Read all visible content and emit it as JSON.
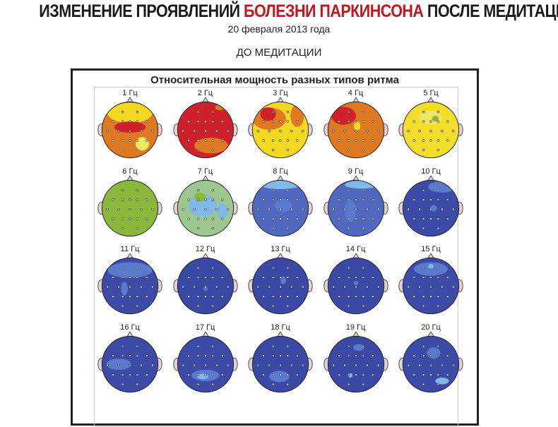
{
  "header": {
    "title_part1": "ИЗМЕНЕНИЕ ПРОЯВЛЕНИЙ ",
    "title_highlight": "БОЛЕЗНИ ПАРКИНСОНА",
    "title_part2": " ПОСЛЕ МЕДИТАЦИИ",
    "date": "20 февраля 2013 года",
    "phase": "ДО МЕДИТАЦИИ"
  },
  "colors": {
    "highlight": "#c4161c"
  },
  "panel": {
    "title": "Относительная мощность разных типов ритма",
    "maps": [
      {
        "label": "1 Гц",
        "base": "#e07a20",
        "dominant": "orange"
      },
      {
        "label": "2 Гц",
        "base": "#d0202a",
        "dominant": "red"
      },
      {
        "label": "3 Гц",
        "base": "#f5d820",
        "dominant": "yellow"
      },
      {
        "label": "4 Гц",
        "base": "#e07a20",
        "dominant": "orange"
      },
      {
        "label": "5 Гц",
        "base": "#f5de2a",
        "dominant": "yellow"
      },
      {
        "label": "6 Гц",
        "base": "#8ab83a",
        "dominant": "green"
      },
      {
        "label": "7 Гц",
        "base": "#9cc890",
        "dominant": "light-green"
      },
      {
        "label": "8 Гц",
        "base": "#5068c0",
        "dominant": "blue"
      },
      {
        "label": "9 Гц",
        "base": "#5068c0",
        "dominant": "blue"
      },
      {
        "label": "10 Гц",
        "base": "#3c4aa8",
        "dominant": "dark-blue"
      },
      {
        "label": "11 Гц",
        "base": "#3c4aa8",
        "dominant": "dark-blue"
      },
      {
        "label": "12 Гц",
        "base": "#3a48a6",
        "dominant": "dark-blue"
      },
      {
        "label": "13 Гц",
        "base": "#3a48a6",
        "dominant": "dark-blue"
      },
      {
        "label": "14 Гц",
        "base": "#3a48a6",
        "dominant": "dark-blue"
      },
      {
        "label": "15 Гц",
        "base": "#3c4aa8",
        "dominant": "dark-blue"
      },
      {
        "label": "16 Гц",
        "base": "#3c4aa8",
        "dominant": "dark-blue"
      },
      {
        "label": "17 Гц",
        "base": "#3c4aa8",
        "dominant": "dark-blue"
      },
      {
        "label": "18 Гц",
        "base": "#3a48a6",
        "dominant": "dark-blue"
      },
      {
        "label": "19 Гц",
        "base": "#3a48a6",
        "dominant": "dark-blue"
      },
      {
        "label": "20 Гц",
        "base": "#3c4aa8",
        "dominant": "dark-blue"
      }
    ]
  }
}
